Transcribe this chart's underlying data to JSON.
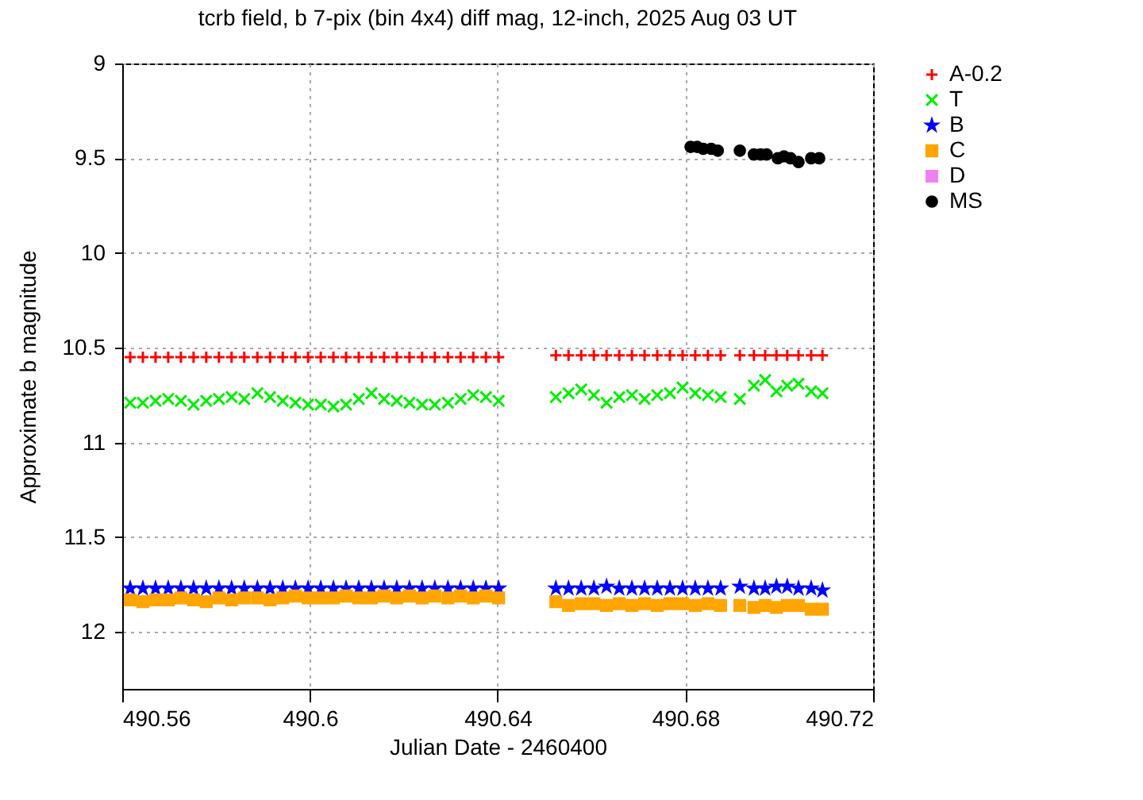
{
  "chart_data": {
    "type": "scatter",
    "title": "tcrb field, b 7-pix (bin 4x4) diff mag, 12-inch, 2025 Aug 03 UT",
    "xlabel": "Julian Date - 2460400",
    "ylabel": "Approximate b magnitude",
    "xlim": [
      490.56,
      490.72
    ],
    "xticks": [
      490.56,
      490.6,
      490.64,
      490.68,
      490.72
    ],
    "ylim": [
      12.3,
      9
    ],
    "yticks": [
      9,
      9.5,
      10,
      10.5,
      11,
      11.5,
      12
    ],
    "grid": true,
    "legend": "top right",
    "x": [
      490.5617,
      490.5644,
      490.5671,
      490.5698,
      490.5725,
      490.5752,
      490.5779,
      490.5806,
      490.5833,
      490.586,
      490.5888,
      490.5915,
      490.5942,
      490.5969,
      490.5996,
      490.6023,
      490.605,
      490.6077,
      490.6104,
      490.6131,
      490.6158,
      490.6185,
      490.6212,
      490.6239,
      490.6266,
      490.6294,
      490.6321,
      490.6348,
      490.6375,
      490.6402,
      490.6524,
      490.6551,
      490.6578,
      490.6605,
      490.6632,
      490.6659,
      490.6686,
      490.6713,
      490.674,
      490.6767,
      490.6794,
      490.6821,
      490.6848,
      490.6875,
      490.6916,
      490.6946,
      490.697,
      490.6994,
      490.7017,
      490.7041,
      490.7068,
      490.7092
    ],
    "series": [
      {
        "name": "A-0.2",
        "color": "#ff0000",
        "marker": "cross",
        "values": [
          10.55,
          10.55,
          10.55,
          10.55,
          10.55,
          10.55,
          10.55,
          10.55,
          10.55,
          10.55,
          10.55,
          10.55,
          10.55,
          10.55,
          10.55,
          10.55,
          10.55,
          10.55,
          10.55,
          10.55,
          10.55,
          10.55,
          10.55,
          10.55,
          10.55,
          10.55,
          10.55,
          10.55,
          10.55,
          10.55,
          10.54,
          10.54,
          10.54,
          10.54,
          10.54,
          10.54,
          10.54,
          10.54,
          10.54,
          10.54,
          10.54,
          10.54,
          10.54,
          10.54,
          10.54,
          10.54,
          10.54,
          10.54,
          10.54,
          10.54,
          10.54,
          10.54
        ]
      },
      {
        "name": "T",
        "color": "#00ee00",
        "marker": "x",
        "values": [
          10.79,
          10.79,
          10.78,
          10.77,
          10.78,
          10.8,
          10.78,
          10.77,
          10.76,
          10.77,
          10.74,
          10.76,
          10.78,
          10.79,
          10.8,
          10.8,
          10.81,
          10.8,
          10.77,
          10.74,
          10.77,
          10.78,
          10.79,
          10.8,
          10.8,
          10.79,
          10.77,
          10.75,
          10.76,
          10.78,
          10.76,
          10.74,
          10.72,
          10.75,
          10.79,
          10.76,
          10.75,
          10.77,
          10.75,
          10.74,
          10.71,
          10.74,
          10.75,
          10.76,
          10.77,
          10.7,
          10.67,
          10.73,
          10.7,
          10.69,
          10.73,
          10.74
        ]
      },
      {
        "name": "B",
        "color": "#0000ff",
        "marker": "star",
        "values": [
          11.77,
          11.77,
          11.77,
          11.77,
          11.77,
          11.77,
          11.77,
          11.77,
          11.77,
          11.77,
          11.77,
          11.77,
          11.77,
          11.77,
          11.77,
          11.77,
          11.77,
          11.77,
          11.77,
          11.77,
          11.77,
          11.77,
          11.77,
          11.77,
          11.77,
          11.77,
          11.77,
          11.77,
          11.77,
          11.77,
          11.77,
          11.77,
          11.77,
          11.77,
          11.76,
          11.77,
          11.77,
          11.77,
          11.77,
          11.77,
          11.77,
          11.77,
          11.77,
          11.77,
          11.76,
          11.77,
          11.77,
          11.76,
          11.76,
          11.77,
          11.77,
          11.78
        ]
      },
      {
        "name": "C",
        "color": "#ffa500",
        "marker": "square",
        "values": [
          11.83,
          11.84,
          11.83,
          11.83,
          11.82,
          11.83,
          11.84,
          11.82,
          11.83,
          11.82,
          11.82,
          11.83,
          11.82,
          11.81,
          11.82,
          11.82,
          11.82,
          11.81,
          11.82,
          11.82,
          11.81,
          11.82,
          11.81,
          11.82,
          11.81,
          11.82,
          11.81,
          11.82,
          11.81,
          11.82,
          11.84,
          11.86,
          11.85,
          11.85,
          11.86,
          11.85,
          11.86,
          11.85,
          11.86,
          11.85,
          11.85,
          11.86,
          11.85,
          11.86,
          11.86,
          11.87,
          11.86,
          11.87,
          11.86,
          11.86,
          11.88,
          11.88
        ]
      },
      {
        "name": "D",
        "color": "#ee82ee",
        "marker": "square",
        "values": [
          null,
          null,
          null,
          null,
          null,
          null,
          null,
          null,
          null,
          null,
          null,
          null,
          null,
          null,
          null,
          null,
          null,
          null,
          null,
          null,
          null,
          null,
          null,
          null,
          null,
          null,
          null,
          null,
          null,
          null,
          null,
          null,
          null,
          null,
          null,
          null,
          null,
          null,
          null,
          null,
          null,
          null,
          null,
          null,
          null,
          null,
          null,
          null,
          null,
          null,
          null,
          null
        ]
      },
      {
        "name": "MS",
        "color": "#000000",
        "marker": "circle",
        "x": [
          490.6811,
          490.6825,
          490.6838,
          490.6855,
          490.6869,
          490.6916,
          490.6946,
          490.696,
          490.6973,
          490.6997,
          490.701,
          490.7024,
          490.7041,
          490.7068,
          490.7085
        ],
        "values": [
          9.44,
          9.44,
          9.45,
          9.45,
          9.46,
          9.46,
          9.48,
          9.48,
          9.48,
          9.5,
          9.49,
          9.5,
          9.52,
          9.5,
          9.5
        ]
      }
    ]
  }
}
